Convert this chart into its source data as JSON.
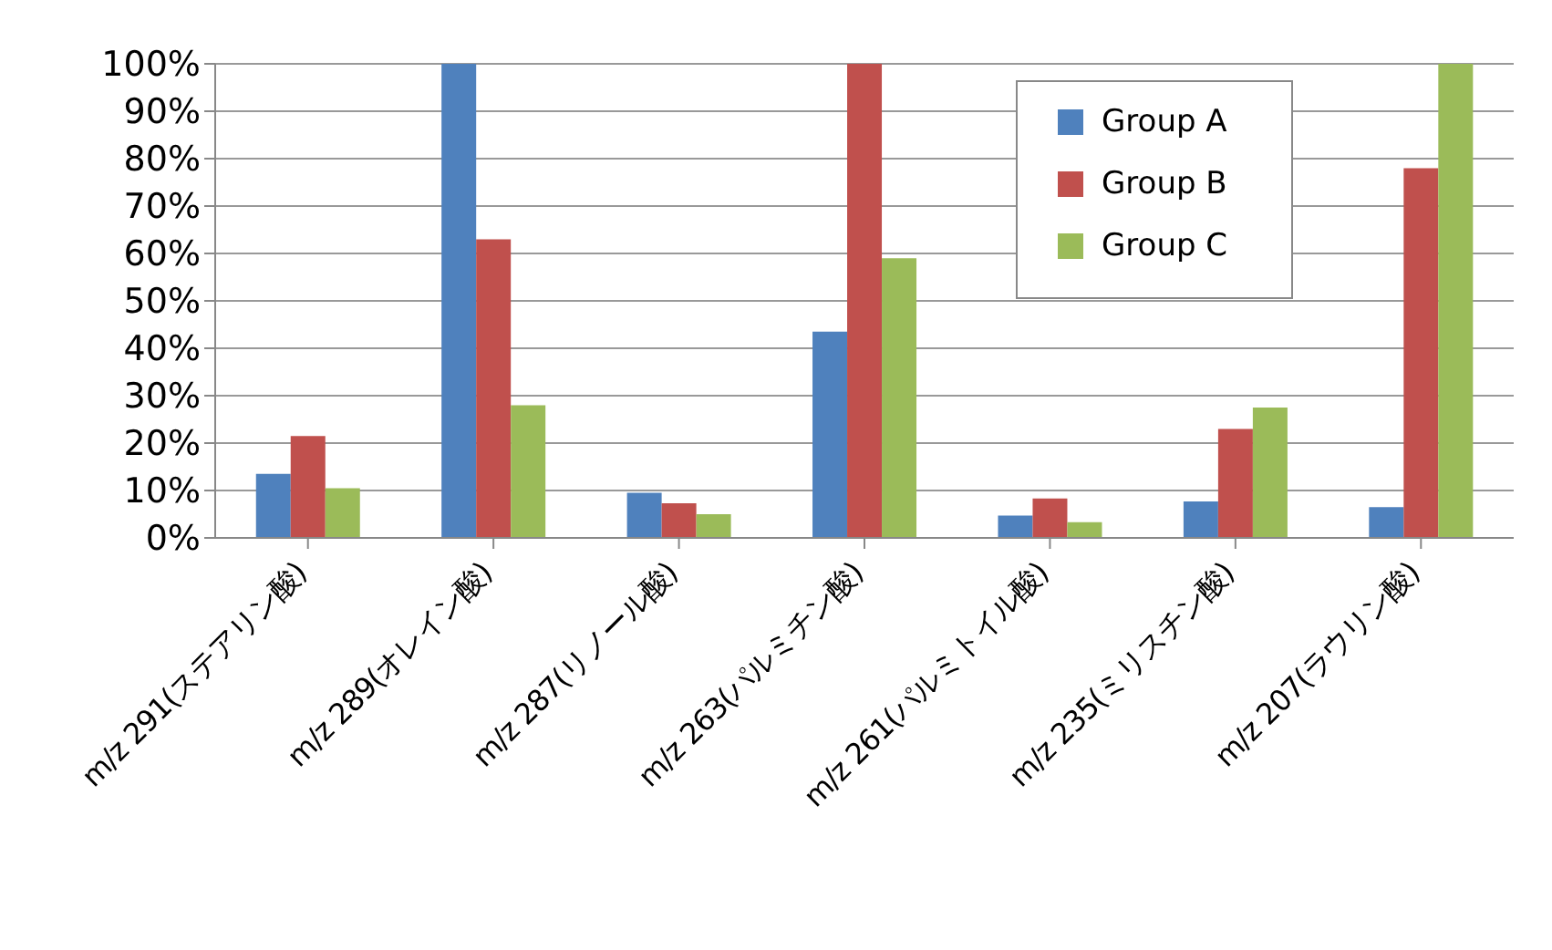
{
  "chart_data": {
    "type": "bar",
    "categories": [
      "m/z 291(ステアリン酸)",
      "m/z 289(オレイン酸)",
      "m/z 287(リノール酸)",
      "m/z 263(パルミチン酸)",
      "m/z 261(パルミトイル酸)",
      "m/z 235(ミリスチン酸)",
      "m/z 207(ラウリン酸)"
    ],
    "series": [
      {
        "name": "Group A",
        "color": "#4f81bd",
        "values": [
          13.5,
          100,
          9.5,
          43.5,
          4.7,
          7.7,
          6.5
        ]
      },
      {
        "name": "Group B",
        "color": "#c0504d",
        "values": [
          21.5,
          63,
          7.3,
          100,
          8.3,
          23,
          78
        ]
      },
      {
        "name": "Group C",
        "color": "#9bbb59",
        "values": [
          10.5,
          28,
          5,
          59,
          3.3,
          27.5,
          100
        ]
      }
    ],
    "ylim": [
      0,
      100
    ],
    "yticks": [
      {
        "value": 0,
        "label": "0%"
      },
      {
        "value": 10,
        "label": "10%"
      },
      {
        "value": 20,
        "label": "20%"
      },
      {
        "value": 30,
        "label": "30%"
      },
      {
        "value": 40,
        "label": "40%"
      },
      {
        "value": 50,
        "label": "50%"
      },
      {
        "value": 60,
        "label": "60%"
      },
      {
        "value": 70,
        "label": "70%"
      },
      {
        "value": 80,
        "label": "80%"
      },
      {
        "value": 90,
        "label": "90%"
      },
      {
        "value": 100,
        "label": "100%"
      }
    ],
    "grid": "y",
    "legend": "top right"
  }
}
